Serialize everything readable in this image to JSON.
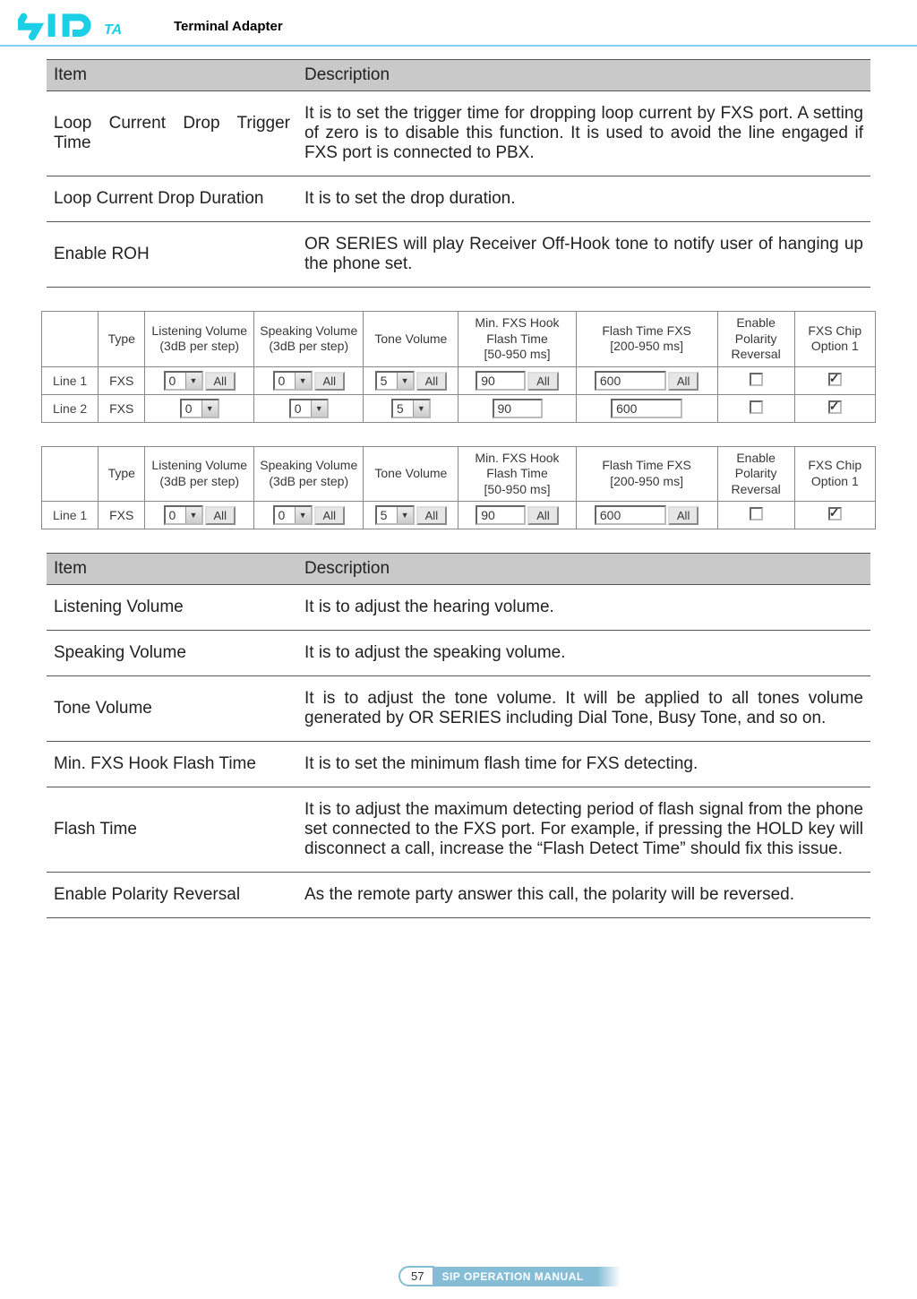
{
  "header": {
    "label": "Terminal Adapter"
  },
  "desc_table_1": {
    "headers": {
      "item": "Item",
      "desc": "Description"
    },
    "rows": [
      {
        "item": "Loop Current Drop Trigger Time",
        "item_justify": true,
        "desc": "It is to set the trigger time for dropping loop current by FXS port. A setting of zero is to disable this function. It is used to avoid the line engaged if FXS port is connected to PBX."
      },
      {
        "item": "Loop Current Drop Duration",
        "item_justify": false,
        "desc": "It is to set the drop duration."
      },
      {
        "item": "Enable ROH",
        "item_justify": false,
        "desc": "OR SERIES will play Receiver Off-Hook tone to notify user of hanging up the phone set."
      }
    ]
  },
  "config_table_a": {
    "columns": [
      "",
      "Type",
      "Listening Volume (3dB per step)",
      "Speaking Volume (3dB per step)",
      "Tone Volume",
      "Min. FXS Hook Flash Time [50-950 ms]",
      "Flash Time FXS [200-950 ms]",
      "Enable Polarity Reversal",
      "FXS Chip Option 1"
    ],
    "rows": [
      {
        "label": "Line 1",
        "type": "FXS",
        "listen": "0",
        "speak": "0",
        "tone": "5",
        "minflash": "90",
        "flash": "600",
        "polarity": false,
        "chip": true,
        "show_all": true
      },
      {
        "label": "Line 2",
        "type": "FXS",
        "listen": "0",
        "speak": "0",
        "tone": "5",
        "minflash": "90",
        "flash": "600",
        "polarity": false,
        "chip": true,
        "show_all": false
      }
    ],
    "all_label": "All"
  },
  "config_table_b": {
    "columns": [
      "",
      "Type",
      "Listening Volume (3dB per step)",
      "Speaking Volume (3dB per step)",
      "Tone Volume",
      "Min. FXS Hook Flash Time [50-950 ms]",
      "Flash Time FXS [200-950 ms]",
      "Enable Polarity Reversal",
      "FXS Chip Option 1"
    ],
    "rows": [
      {
        "label": "Line 1",
        "type": "FXS",
        "listen": "0",
        "speak": "0",
        "tone": "5",
        "minflash": "90",
        "flash": "600",
        "polarity": false,
        "chip": true,
        "show_all": true
      }
    ],
    "all_label": "All"
  },
  "desc_table_2": {
    "headers": {
      "item": "Item",
      "desc": "Description"
    },
    "rows": [
      {
        "item": "Listening Volume",
        "desc": "It is to adjust the hearing volume."
      },
      {
        "item": "Speaking Volume",
        "desc": "It is to adjust the speaking volume."
      },
      {
        "item": "Tone Volume",
        "desc": "It is to adjust the tone volume. It will be applied to all tones volume generated by OR SERIES including Dial Tone, Busy Tone, and so on."
      },
      {
        "item": "Min. FXS Hook Flash Time",
        "desc": "It is to set the minimum flash time for FXS detecting."
      },
      {
        "item": "Flash Time",
        "desc": "It is to adjust the maximum detecting period of flash signal from the phone set connected to the FXS port. For example, if pressing the HOLD key will disconnect a call, increase the “Flash Detect Time” should fix this issue."
      },
      {
        "item": "Enable Polarity Reversal",
        "desc": "As the remote party answer this call, the polarity will be reversed."
      }
    ]
  },
  "footer": {
    "page": "57",
    "label": "SIP OPERATION MANUAL"
  }
}
